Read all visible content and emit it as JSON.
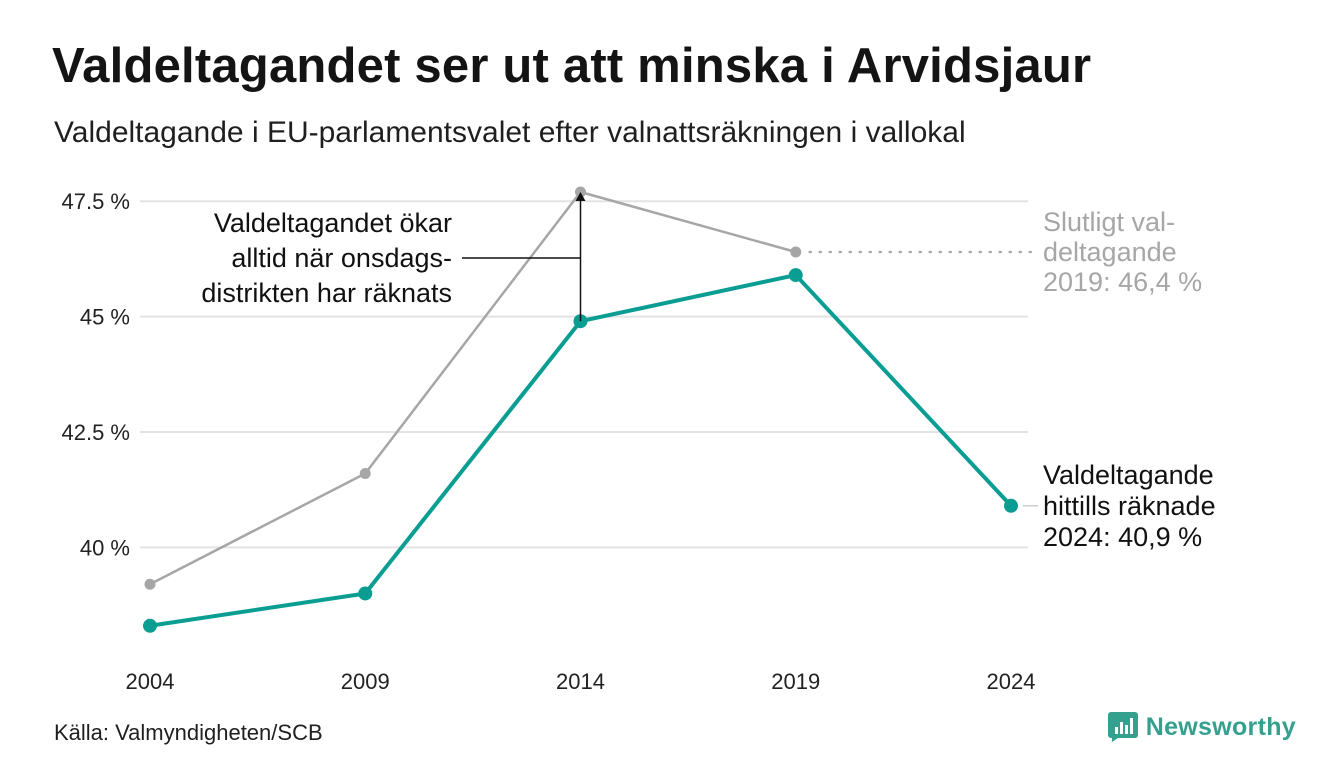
{
  "title": "Valdeltagandet ser ut att minska i Arvidsjaur",
  "subtitle": "Valdeltagande i EU-parlamentsvalet efter valnattsräkningen i vallokal",
  "source": "Källa: Valmyndigheten/SCB",
  "brand": "Newsworthy",
  "colors": {
    "final_series": "#a6a6a6",
    "preliminary_series": "#0a9e93",
    "grid": "#e3e3e3",
    "annotation": "#111111",
    "brand": "#36a08f"
  },
  "chart_data": {
    "type": "line",
    "x": [
      "2004",
      "2009",
      "2014",
      "2019",
      "2024"
    ],
    "ylim": [
      38.1,
      47.7
    ],
    "yticks": [
      {
        "value": 40,
        "label": "40 %"
      },
      {
        "value": 42.5,
        "label": "42.5 %"
      },
      {
        "value": 45,
        "label": "45 %"
      },
      {
        "value": 47.5,
        "label": "47.5 %"
      }
    ],
    "grid": true,
    "series": [
      {
        "key": "final",
        "values": [
          39.2,
          41.6,
          47.7,
          46.4,
          null
        ]
      },
      {
        "key": "preliminary",
        "values": [
          38.3,
          39.0,
          44.9,
          45.9,
          40.9
        ]
      }
    ],
    "annotations": {
      "increase_note": [
        "Valdeltagandet ökar",
        "alltid när onsdags-",
        "distrikten har räknats"
      ],
      "final_2019": [
        "Slutligt val-",
        "deltagande",
        "2019: 46,4 %"
      ],
      "current_2024": [
        "Valdeltagande",
        "hittills räknade",
        "2024: 40,9 %"
      ]
    }
  }
}
